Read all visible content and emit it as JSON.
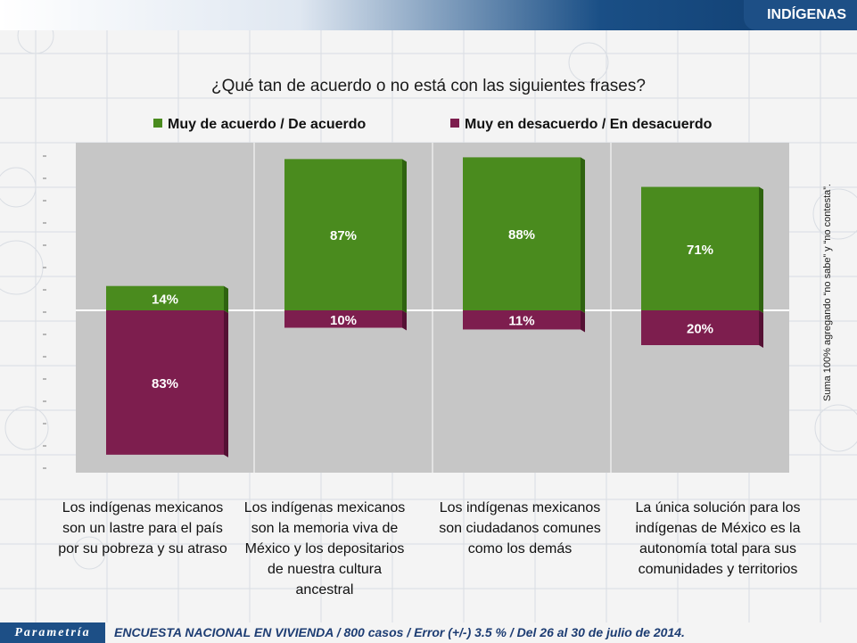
{
  "header": {
    "badge": "INDÍGENAS"
  },
  "question": "¿Qué tan de acuerdo o no está con las siguientes frases?",
  "side_note": "Suma 100% agregando “no sabe” y “no contesta”.",
  "footer": {
    "logo": "Parametría",
    "text": "ENCUESTA NACIONAL EN VIVIENDA / 800 casos / Error (+/-) 3.5 % / Del 26 al 30 de julio de 2014."
  },
  "colors": {
    "agree": "#4a8b1e",
    "disagree": "#7d1e4e",
    "plot_bg": "#c6c6c6",
    "header": "#1d4f86"
  },
  "chart_data": {
    "type": "bar",
    "categories": [
      "Los indígenas mexicanos son un lastre para el país por su pobreza y su atraso",
      "Los indígenas mexicanos son la memoria viva de México y los depositarios de nuestra cultura ancestral",
      "Los indígenas mexicanos son ciudadanos comunes como los demás",
      "La única solución para los indígenas de México es la autonomía total para sus comunidades y territorios"
    ],
    "series": [
      {
        "name": "Muy de acuerdo / De acuerdo",
        "values": [
          14,
          87,
          88,
          71
        ],
        "labels": [
          "14%",
          "87%",
          "88%",
          "71%"
        ]
      },
      {
        "name": "Muy en desacuerdo / En desacuerdo",
        "values": [
          -83,
          -10,
          -11,
          -20
        ],
        "labels": [
          "83%",
          "10%",
          "11%",
          "20%"
        ]
      }
    ],
    "ylim": [
      -90,
      100
    ]
  }
}
